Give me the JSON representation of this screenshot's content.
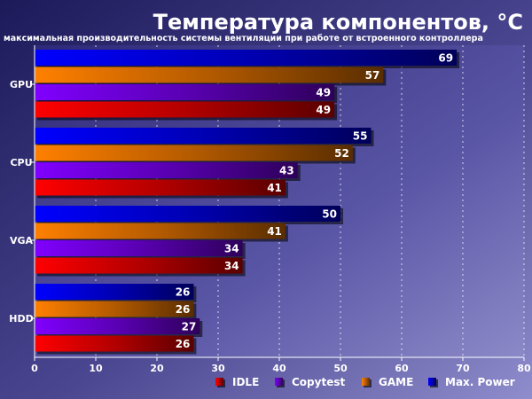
{
  "chart_data": {
    "type": "bar",
    "orientation": "horizontal",
    "title": "Температура компонентов, °C",
    "subtitle": "максимальная производительность системы вентиляции при работе от встроенного контроллера",
    "categories": [
      "GPU",
      "CPU",
      "VGA",
      "HDD"
    ],
    "series": [
      {
        "name": "Max. Power",
        "values": [
          69,
          55,
          50,
          26
        ],
        "color": "#0000ff"
      },
      {
        "name": "GAME",
        "values": [
          57,
          52,
          41,
          26
        ],
        "color": "#ff8000"
      },
      {
        "name": "Copytest",
        "values": [
          49,
          43,
          34,
          27
        ],
        "color": "#8000ff"
      },
      {
        "name": "IDLE",
        "values": [
          49,
          41,
          34,
          26
        ],
        "color": "#ff0000"
      }
    ],
    "legend_order": [
      "IDLE",
      "Copytest",
      "GAME",
      "Max. Power"
    ],
    "xlim": [
      0,
      80
    ],
    "xticks": [
      0,
      10,
      20,
      30,
      40,
      50,
      60,
      70,
      80
    ],
    "grid": true,
    "legend_position": "bottom-right"
  }
}
